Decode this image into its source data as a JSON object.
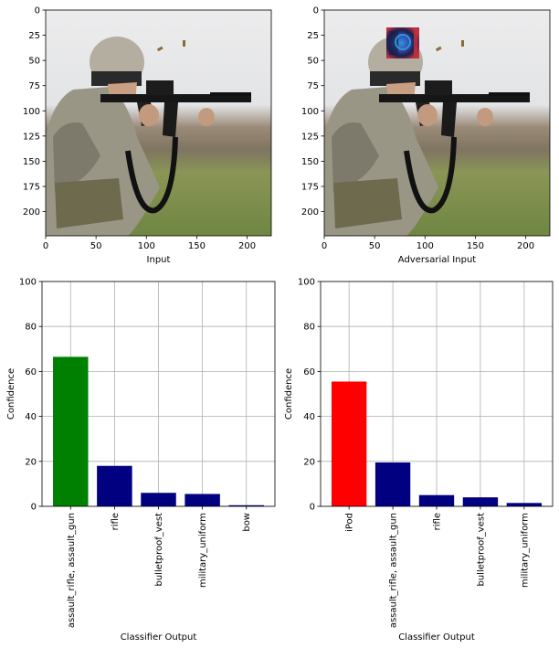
{
  "chart_data": [
    {
      "type": "image",
      "xlabel": "Input",
      "xlim": [
        0,
        224
      ],
      "ylim": [
        224,
        0
      ],
      "xticks": [
        0,
        50,
        100,
        150,
        200
      ],
      "yticks": [
        0,
        25,
        50,
        75,
        100,
        125,
        150,
        175,
        200
      ],
      "grid": false
    },
    {
      "type": "image",
      "xlabel": "Adversarial Input",
      "xlim": [
        0,
        224
      ],
      "ylim": [
        224,
        0
      ],
      "xticks": [
        0,
        50,
        100,
        150,
        200
      ],
      "yticks": [
        0,
        25,
        50,
        75,
        100,
        125,
        150,
        175,
        200
      ],
      "grid": false,
      "patch_colors": [
        "#1a1f4a",
        "#3a4fc0",
        "#2b9ad0",
        "#c03040"
      ]
    },
    {
      "type": "bar",
      "categories": [
        "assault_rifle, assault_gun",
        "rifle",
        "bulletproof_vest",
        "military_uniform",
        "bow"
      ],
      "values": [
        66.5,
        18,
        6,
        5.5,
        0.5
      ],
      "colors": [
        "#008000",
        "#000080",
        "#000080",
        "#000080",
        "#000080"
      ],
      "xlabel": "Classifier Output",
      "ylabel": "Confidence",
      "ylim": [
        0,
        100
      ],
      "yticks": [
        0,
        20,
        40,
        60,
        80,
        100
      ],
      "grid": true
    },
    {
      "type": "bar",
      "categories": [
        "iPod",
        "assault_rifle, assault_gun",
        "rifle",
        "bulletproof_vest",
        "military_uniform"
      ],
      "values": [
        55.5,
        19.5,
        5,
        4,
        1.5
      ],
      "colors": [
        "#ff0000",
        "#000080",
        "#000080",
        "#000080",
        "#000080"
      ],
      "xlabel": "Classifier Output",
      "ylabel": "Confidence",
      "ylim": [
        0,
        100
      ],
      "yticks": [
        0,
        20,
        40,
        60,
        80,
        100
      ],
      "grid": true
    }
  ],
  "colors": {
    "sky": "#e9eaec",
    "treeline": "#86796a",
    "grass": "#7c8f4d",
    "camo": "#9a9686",
    "gun": "#161616"
  }
}
